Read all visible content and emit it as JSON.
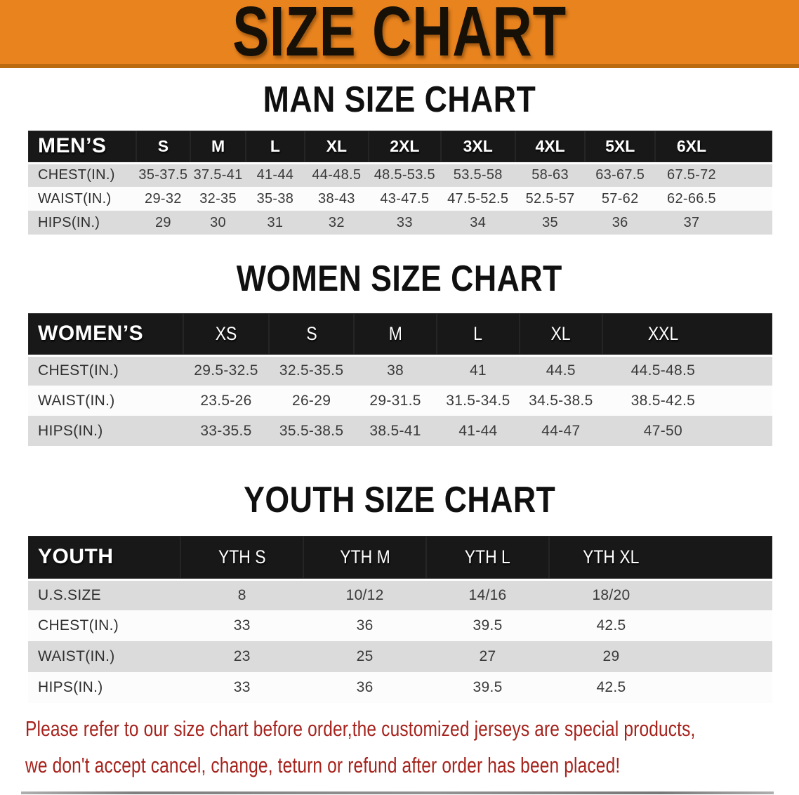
{
  "banner": {
    "title": "SIZE CHART"
  },
  "sections": [
    {
      "heading": "MAN SIZE CHART",
      "table": {
        "header": [
          "MEN’S",
          "S",
          "M",
          "L",
          "XL",
          "2XL",
          "3XL",
          "4XL",
          "5XL",
          "6XL"
        ],
        "rows": [
          {
            "label": "CHEST(IN.)",
            "values": [
              "35-37.5",
              "37.5-41",
              "41-44",
              "44-48.5",
              "48.5-53.5",
              "53.5-58",
              "58-63",
              "63-67.5",
              "67.5-72"
            ]
          },
          {
            "label": "WAIST(IN.)",
            "values": [
              "29-32",
              "32-35",
              "35-38",
              "38-43",
              "43-47.5",
              "47.5-52.5",
              "52.5-57",
              "57-62",
              "62-66.5"
            ]
          },
          {
            "label": "HIPS(IN.)",
            "values": [
              "29",
              "30",
              "31",
              "32",
              "33",
              "34",
              "35",
              "36",
              "37"
            ]
          }
        ]
      }
    },
    {
      "heading": "WOMEN SIZE CHART",
      "table": {
        "header": [
          "WOMEN’S",
          "XS",
          "S",
          "M",
          "L",
          "XL",
          "XXL"
        ],
        "rows": [
          {
            "label": "CHEST(IN.)",
            "values": [
              "29.5-32.5",
              "32.5-35.5",
              "38",
              "41",
              "44.5",
              "44.5-48.5"
            ]
          },
          {
            "label": "WAIST(IN.)",
            "values": [
              "23.5-26",
              "26-29",
              "29-31.5",
              "31.5-34.5",
              "34.5-38.5",
              "38.5-42.5"
            ]
          },
          {
            "label": "HIPS(IN.)",
            "values": [
              "33-35.5",
              "35.5-38.5",
              "38.5-41",
              "41-44",
              "44-47",
              "47-50"
            ]
          }
        ]
      }
    },
    {
      "heading": "YOUTH SIZE CHART",
      "table": {
        "header": [
          "YOUTH",
          "YTH S",
          "YTH M",
          "YTH L",
          "YTH XL"
        ],
        "rows": [
          {
            "label": "U.S.SIZE",
            "values": [
              "8",
              "10/12",
              "14/16",
              "18/20"
            ]
          },
          {
            "label": "CHEST(IN.)",
            "values": [
              "33",
              "36",
              "39.5",
              "42.5"
            ]
          },
          {
            "label": "WAIST(IN.)",
            "values": [
              "23",
              "25",
              "27",
              "29"
            ]
          },
          {
            "label": "HIPS(IN.)",
            "values": [
              "33",
              "36",
              "39.5",
              "42.5"
            ]
          }
        ]
      }
    }
  ],
  "footer": {
    "line1": "Please refer to our size chart before order,the customized jerseys are special products,",
    "line2": "we don't accept cancel, change, teturn or refund after order has been placed!"
  },
  "colors": {
    "banner_bg": "#E8831E",
    "banner_border": "#BC6A10",
    "table_header_bg": "#181818",
    "row_gray": "#DBDBDB",
    "row_white": "#FCFCFC",
    "notice_red": "#A6221C"
  }
}
